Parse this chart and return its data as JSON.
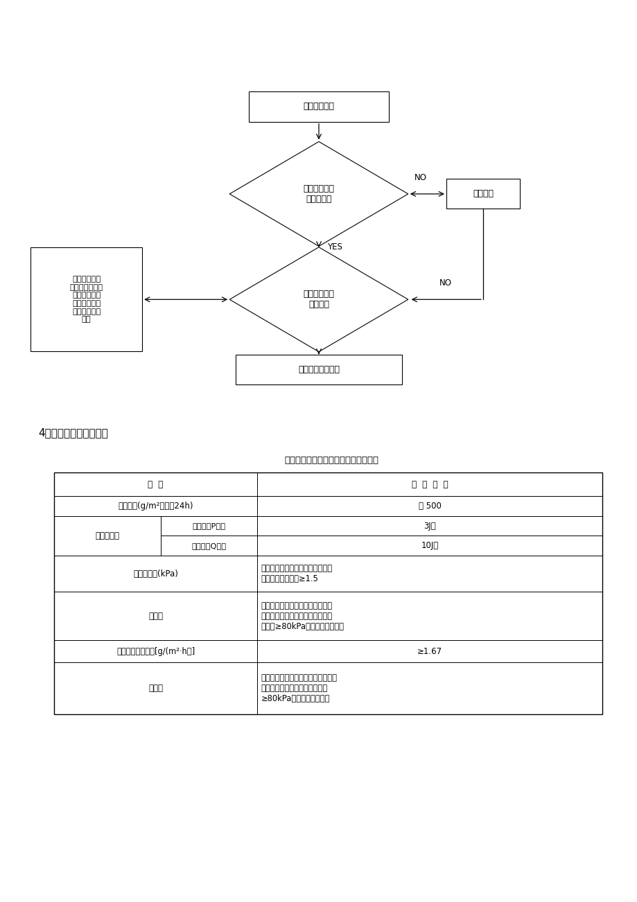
{
  "bg_color": "#ffffff",
  "page_width": 9.2,
  "page_height": 13.02,
  "dpi": 100,
  "flowchart": {
    "r1_text": "材料进场检验",
    "d1_text": "外观检查是否\n完整无损伤",
    "rr_text": "退回重送",
    "d2_text": "材料判定是否\n符合资料",
    "lr_text": "符合合同规范\n的材料设备，附\n有原厂证明书\n测试报告或公\n认机关检验证\n明书",
    "br_text": "经检验合格的材料",
    "yes_label": "YES",
    "no_label": "NO"
  },
  "section_title": "4．系统及材料性能指标",
  "table_title": "岩棉薄抹灰外墙外保温系统的性能指标",
  "header_col1": "项  目",
  "header_col2": "性  能  指  标",
  "row1_left": "吸水量，(g/m²，浸水24h)",
  "row1_right": "＜ 500",
  "row2_col1": "抗冲击强度",
  "row2a_col2": "普通型（P型）",
  "row2a_col3": "3J级",
  "row2b_col2": "加强型（Q型）",
  "row2b_col3": "10J级",
  "row3_left": "抗风压值，(kPa)",
  "row3_right": "不小于工程项目的风荷载设计值，\n抗负风压安全系数≥1.5",
  "row4_left": "耐冻融",
  "row4_right": "表面无裂纹、空鼓、起泡、剥离现\n象。抹面胶浆与岩棉之间的拉伸粘\n结强度≥80kPa，或破坏在岩棉内",
  "row5_left": "水蒸气湿流密度，[g/(m²·h）]",
  "row5_right": "≥1.67",
  "row6_left": "耐候性",
  "row6_right": "表面无裂纹、粉化、剥落现象。抹面\n胶浆与岩棉之间的拉伸粘结强度\n≥80kPa，或破坏在岩棉内"
}
